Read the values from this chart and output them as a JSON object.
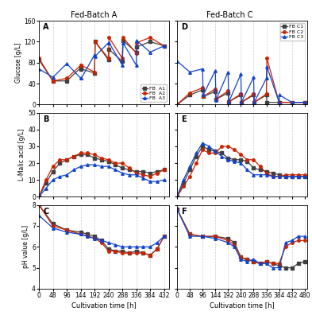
{
  "title_left": "Fed-Batch A",
  "title_right": "Fed-Batch C",
  "colors": {
    "c1": "#404040",
    "c2": "#cc2200",
    "c3": "#1144cc"
  },
  "markers": {
    "c1": "s",
    "c2": "o",
    "c3": "^"
  },
  "legend_A": [
    "FB  A1",
    "FB  A2",
    "FB  A3"
  ],
  "legend_D": [
    "FB C1",
    "FB C2",
    "FB C3"
  ],
  "ylabel_A": "Glucose [g/L]",
  "ylabel_B": "L-Malic acid [g/L]",
  "ylabel_C": "pH value [g/L]",
  "xlabel": "Cultivation time [h]",
  "ylim_A": [
    0,
    160
  ],
  "ylim_B": [
    0,
    50
  ],
  "ylim_C": [
    4,
    8
  ],
  "yticks_A": [
    0,
    40,
    80,
    120,
    160
  ],
  "yticks_B": [
    0,
    10,
    20,
    30,
    40,
    50
  ],
  "yticks_C": [
    4,
    5,
    6,
    7,
    8
  ],
  "xticks_left": [
    0,
    48,
    96,
    144,
    192,
    240,
    288,
    336,
    384,
    432
  ],
  "xticks_right": [
    0,
    48,
    96,
    144,
    192,
    240,
    288,
    336,
    384,
    432,
    480
  ],
  "xlim_left": [
    0,
    450
  ],
  "xlim_right": [
    0,
    490
  ],
  "A_x": [
    0,
    48,
    96,
    144,
    146,
    192,
    194,
    240,
    242,
    288,
    290,
    336,
    338,
    384,
    432
  ],
  "A_y1": [
    85,
    45,
    45,
    70,
    68,
    60,
    120,
    85,
    105,
    82,
    122,
    100,
    110,
    120,
    112
  ],
  "A_y2": [
    88,
    45,
    50,
    75,
    75,
    62,
    120,
    88,
    128,
    88,
    128,
    98,
    118,
    128,
    112
  ],
  "A_y3": [
    68,
    52,
    78,
    50,
    50,
    95,
    92,
    118,
    118,
    75,
    118,
    75,
    122,
    100,
    112
  ],
  "B_x": [
    0,
    24,
    48,
    72,
    96,
    120,
    144,
    168,
    192,
    216,
    240,
    264,
    288,
    312,
    336,
    360,
    384,
    408,
    432
  ],
  "B_y1": [
    0,
    8,
    15,
    20,
    22,
    24,
    25,
    25,
    23,
    22,
    21,
    19,
    17,
    16,
    15,
    15,
    14,
    15,
    16
  ],
  "B_y2": [
    0,
    10,
    18,
    22,
    22,
    24,
    26,
    26,
    25,
    23,
    22,
    20,
    20,
    17,
    14,
    13,
    12,
    14,
    16
  ],
  "B_y3": [
    0,
    5,
    10,
    12,
    13,
    16,
    18,
    19,
    19,
    18,
    18,
    16,
    14,
    13,
    13,
    11,
    9,
    9,
    10
  ],
  "C_x": [
    0,
    48,
    96,
    144,
    168,
    192,
    216,
    240,
    264,
    288,
    312,
    336,
    360,
    384,
    408,
    432
  ],
  "C_y1": [
    8.0,
    7.1,
    6.8,
    6.7,
    6.6,
    6.5,
    6.3,
    5.9,
    5.8,
    5.8,
    5.7,
    5.8,
    5.7,
    5.6,
    5.9,
    6.5
  ],
  "C_y2": [
    8.0,
    7.0,
    6.8,
    6.6,
    6.5,
    6.4,
    6.2,
    5.8,
    5.8,
    5.7,
    5.7,
    5.7,
    5.7,
    5.6,
    5.9,
    6.5
  ],
  "C_y3": [
    7.5,
    6.9,
    6.7,
    6.6,
    6.5,
    6.4,
    6.3,
    6.2,
    6.1,
    6.0,
    6.0,
    6.0,
    6.0,
    6.0,
    6.2,
    6.5
  ],
  "D_x": [
    0,
    48,
    96,
    98,
    144,
    146,
    192,
    194,
    240,
    242,
    288,
    290,
    336,
    338,
    384,
    386,
    432,
    480
  ],
  "D_y1": [
    0,
    18,
    28,
    15,
    25,
    10,
    22,
    5,
    18,
    4,
    18,
    4,
    18,
    4,
    4,
    4,
    4,
    4
  ],
  "D_y2": [
    0,
    22,
    32,
    15,
    30,
    10,
    26,
    5,
    20,
    4,
    20,
    4,
    20,
    88,
    4,
    4,
    4,
    4
  ],
  "D_y3": [
    83,
    62,
    68,
    18,
    65,
    8,
    62,
    4,
    58,
    4,
    52,
    4,
    50,
    72,
    4,
    18,
    4,
    4
  ],
  "E_x": [
    0,
    24,
    48,
    72,
    96,
    120,
    144,
    168,
    192,
    216,
    240,
    264,
    288,
    312,
    336,
    360,
    384,
    408,
    432,
    456,
    480
  ],
  "E_y1": [
    0,
    8,
    16,
    24,
    30,
    28,
    27,
    26,
    23,
    22,
    22,
    21,
    17,
    16,
    15,
    14,
    13,
    12,
    12,
    12,
    12
  ],
  "E_y2": [
    0,
    6,
    12,
    20,
    28,
    26,
    26,
    30,
    30,
    28,
    25,
    22,
    22,
    18,
    14,
    12,
    12,
    13,
    13,
    13,
    13
  ],
  "E_y3": [
    0,
    10,
    18,
    26,
    32,
    30,
    27,
    24,
    22,
    21,
    20,
    16,
    13,
    13,
    13,
    12,
    12,
    12,
    12,
    12,
    12
  ],
  "F_x": [
    0,
    48,
    96,
    144,
    192,
    216,
    240,
    264,
    288,
    312,
    336,
    360,
    384,
    408,
    432,
    456,
    480
  ],
  "F_y1": [
    7.8,
    6.6,
    6.5,
    6.5,
    6.4,
    6.2,
    5.5,
    5.4,
    5.3,
    5.2,
    5.3,
    5.2,
    5.1,
    5.0,
    5.0,
    5.2,
    5.3
  ],
  "F_y2": [
    7.8,
    6.6,
    6.5,
    6.5,
    6.3,
    6.1,
    5.5,
    5.4,
    5.3,
    5.2,
    5.3,
    5.2,
    5.2,
    6.0,
    6.2,
    6.3,
    6.3
  ],
  "F_y3": [
    7.8,
    6.5,
    6.5,
    6.4,
    6.2,
    6.0,
    5.4,
    5.3,
    5.4,
    5.2,
    5.2,
    5.0,
    5.0,
    6.2,
    6.3,
    6.5,
    6.5
  ]
}
